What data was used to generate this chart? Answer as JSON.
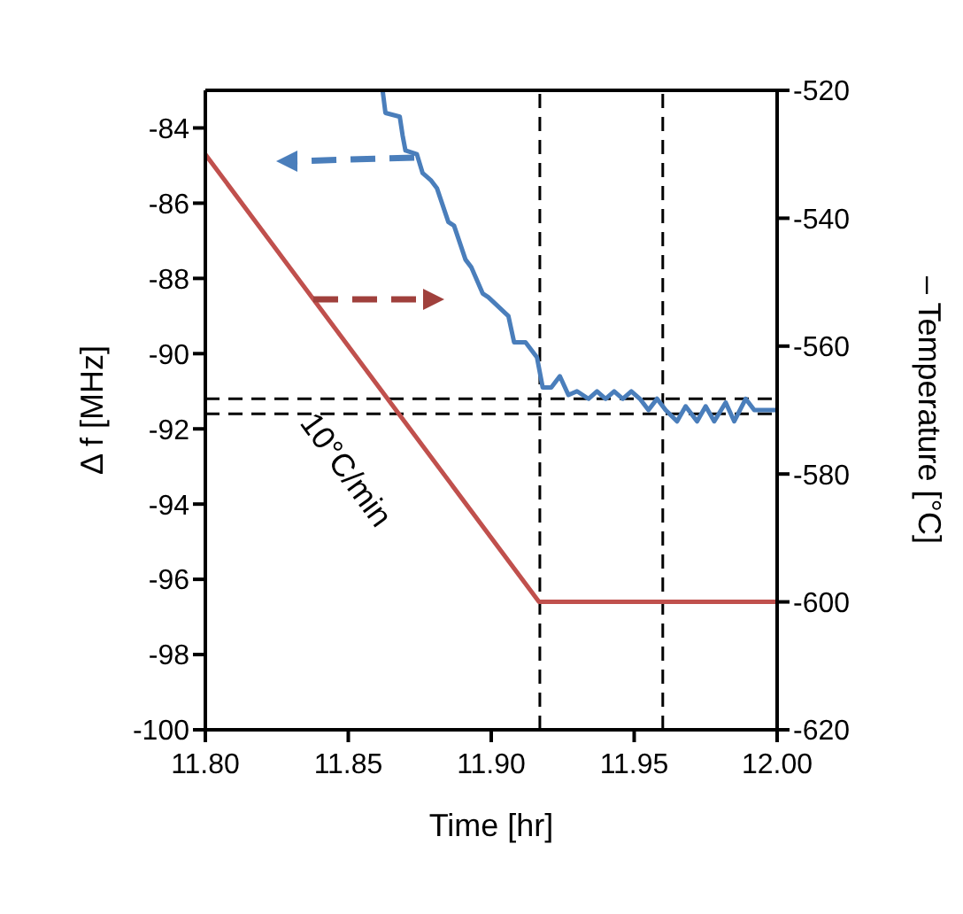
{
  "chart_data": {
    "type": "line",
    "xlabel": "Time [hr]",
    "ylabel": "Δ f [MHz]",
    "y2label": "– Temperature [°C]",
    "annotations": [
      "10°C/min"
    ],
    "series": [
      {
        "name": null,
        "color": "#4a7ebb",
        "x": [
          11.862,
          11.863,
          11.868,
          11.869,
          11.87,
          11.874,
          11.876,
          11.879,
          11.881,
          11.885,
          11.887,
          11.891,
          11.893,
          11.897,
          11.899,
          11.906,
          11.908,
          11.912,
          11.916,
          11.918,
          11.921,
          11.924,
          11.927,
          11.93,
          11.934,
          11.937,
          11.94,
          11.943,
          11.946,
          11.949,
          11.952,
          11.955,
          11.958,
          11.961,
          11.965,
          11.968,
          11.972,
          11.975,
          11.978,
          11.982,
          11.985,
          11.989,
          11.992,
          11.994,
          12.0
        ],
        "values": [
          -83.0,
          -83.6,
          -83.7,
          -84.2,
          -84.6,
          -84.7,
          -85.2,
          -85.4,
          -85.6,
          -86.5,
          -86.6,
          -87.5,
          -87.7,
          -88.4,
          -88.5,
          -89.0,
          -89.7,
          -89.7,
          -90.1,
          -90.9,
          -90.9,
          -90.6,
          -91.1,
          -91.0,
          -91.2,
          -91.0,
          -91.2,
          -91.0,
          -91.2,
          -91.0,
          -91.2,
          -91.5,
          -91.2,
          -91.5,
          -91.8,
          -91.4,
          -91.8,
          -91.4,
          -91.8,
          -91.3,
          -91.8,
          -91.2,
          -91.5,
          -91.5,
          -91.5
        ]
      },
      {
        "name": null,
        "color": "#c0504d",
        "axis": "y2",
        "x": [
          11.8,
          11.9167,
          12.0
        ],
        "values": [
          -530,
          -600,
          -600
        ]
      }
    ],
    "xlim": [
      11.8,
      12.0
    ],
    "xticks": [
      {
        "value": 11.8,
        "label": "11.80"
      },
      {
        "value": 11.85,
        "label": "11.85"
      },
      {
        "value": 11.9,
        "label": "11.90"
      },
      {
        "value": 11.95,
        "label": "11.95"
      },
      {
        "value": 12.0,
        "label": "12.00"
      }
    ],
    "ylim": [
      -100,
      -83
    ],
    "yticks": [
      -100,
      -98,
      -96,
      -94,
      -92,
      -90,
      -88,
      -86,
      -84
    ],
    "y2lim": [
      -620,
      -520
    ],
    "y2ticks": [
      -620,
      -600,
      -580,
      -560,
      -540,
      -520
    ],
    "ref_lines": [
      {
        "axis": "x",
        "value": 11.917,
        "label": null,
        "color": "#000000",
        "line_style": "dashed"
      },
      {
        "axis": "x",
        "value": 11.96,
        "label": null,
        "color": "#000000",
        "line_style": "dashed"
      },
      {
        "axis": "y",
        "value": -91.2,
        "label": null,
        "color": "#000000",
        "line_style": "dashed"
      },
      {
        "axis": "y",
        "value": -91.6,
        "label": null,
        "color": "#000000",
        "line_style": "dashed"
      }
    ],
    "grid": false,
    "marker": "none",
    "line_style": "solid"
  }
}
